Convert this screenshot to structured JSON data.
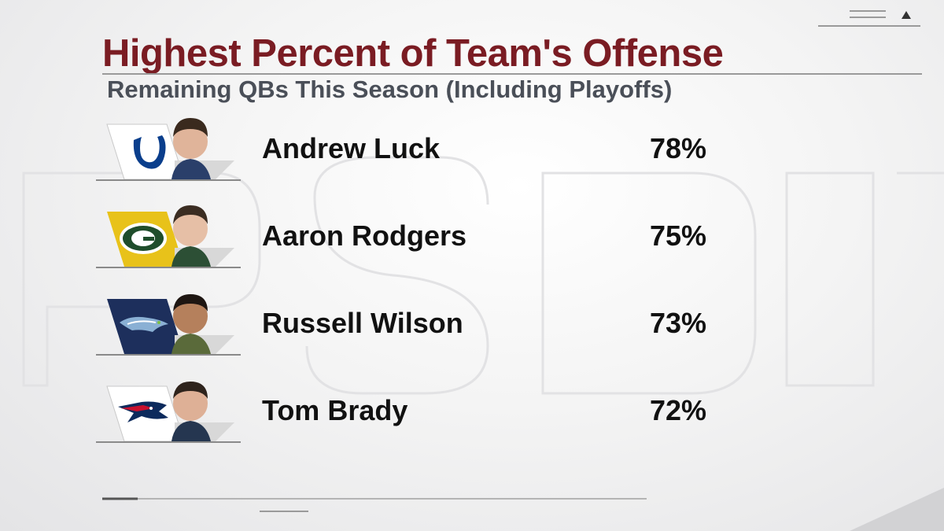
{
  "header": {
    "title": "Highest Percent of Team's Offense",
    "subtitle": "Remaining QBs This Season (Including Playoffs)"
  },
  "players": [
    {
      "name": "Andrew Luck",
      "percent": "78%",
      "team_icon": "colts-horseshoe-icon",
      "team_color": "#ffffff",
      "logo_color": "#0a3e8c"
    },
    {
      "name": "Aaron Rodgers",
      "percent": "75%",
      "team_icon": "packers-g-icon",
      "team_color": "#e8c21a",
      "logo_color": "#1f4d2b"
    },
    {
      "name": "Russell Wilson",
      "percent": "73%",
      "team_icon": "seahawks-icon",
      "team_color": "#1d2f5c",
      "logo_color": "#8ab0d4"
    },
    {
      "name": "Tom Brady",
      "percent": "72%",
      "team_icon": "patriots-icon",
      "team_color": "#ffffff",
      "logo_color": "#0c2a5c"
    }
  ],
  "colors": {
    "title": "#7a1c23",
    "subtitle": "#4a4f58",
    "text": "#111111"
  }
}
